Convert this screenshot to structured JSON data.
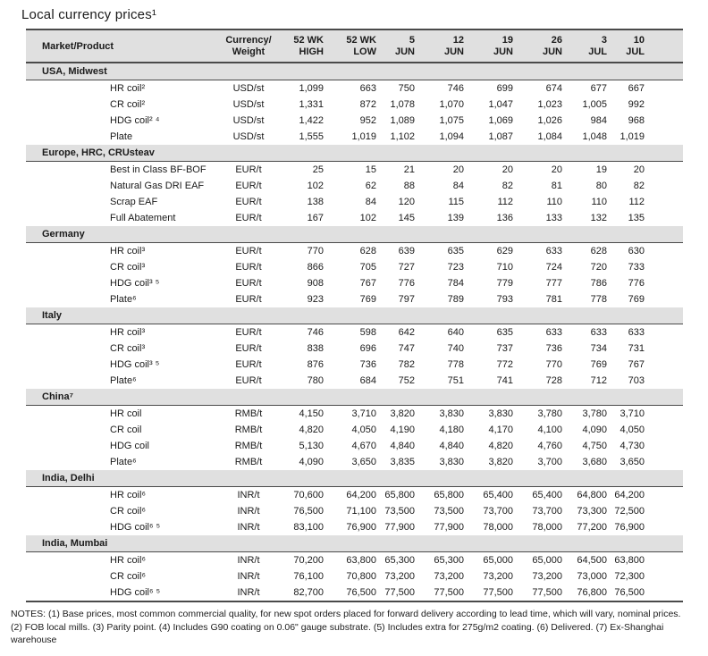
{
  "title": "Local currency prices¹",
  "colors": {
    "band": "#e0e0e0",
    "rule": "#4a4a4a",
    "text": "#1a1a1a"
  },
  "table": {
    "product_header": "Market/Product",
    "columns": [
      {
        "l1": "Currency/",
        "l2": "Weight"
      },
      {
        "l1": "52 WK",
        "l2": "HIGH"
      },
      {
        "l1": "52 WK",
        "l2": "LOW"
      },
      {
        "l1": "5",
        "l2": "JUN"
      },
      {
        "l1": "12",
        "l2": "JUN"
      },
      {
        "l1": "19",
        "l2": "JUN"
      },
      {
        "l1": "26",
        "l2": "JUN"
      },
      {
        "l1": "3",
        "l2": "JUL"
      },
      {
        "l1": "10",
        "l2": "JUL"
      }
    ],
    "sections": [
      {
        "name": "USA, Midwest",
        "rows": [
          {
            "product": "HR coil²",
            "currency": "USD/st",
            "values": [
              "1,099",
              "663",
              "750",
              "746",
              "699",
              "674",
              "677",
              "667"
            ]
          },
          {
            "product": "CR coil²",
            "currency": "USD/st",
            "values": [
              "1,331",
              "872",
              "1,078",
              "1,070",
              "1,047",
              "1,023",
              "1,005",
              "992"
            ]
          },
          {
            "product": "HDG coil² ⁴",
            "currency": "USD/st",
            "values": [
              "1,422",
              "952",
              "1,089",
              "1,075",
              "1,069",
              "1,026",
              "984",
              "968"
            ]
          },
          {
            "product": "Plate",
            "currency": "USD/st",
            "values": [
              "1,555",
              "1,019",
              "1,102",
              "1,094",
              "1,087",
              "1,084",
              "1,048",
              "1,019"
            ]
          }
        ]
      },
      {
        "name": "Europe, HRC, CRUsteav",
        "rows": [
          {
            "product": "Best in Class BF-BOF",
            "currency": "EUR/t",
            "values": [
              "25",
              "15",
              "21",
              "20",
              "20",
              "20",
              "19",
              "20"
            ]
          },
          {
            "product": "Natural Gas DRI EAF",
            "currency": "EUR/t",
            "values": [
              "102",
              "62",
              "88",
              "84",
              "82",
              "81",
              "80",
              "82"
            ]
          },
          {
            "product": "Scrap EAF",
            "currency": "EUR/t",
            "values": [
              "138",
              "84",
              "120",
              "115",
              "112",
              "110",
              "110",
              "112"
            ]
          },
          {
            "product": "Full Abatement",
            "currency": "EUR/t",
            "values": [
              "167",
              "102",
              "145",
              "139",
              "136",
              "133",
              "132",
              "135"
            ]
          }
        ]
      },
      {
        "name": "Germany",
        "rows": [
          {
            "product": "HR coil³",
            "currency": "EUR/t",
            "values": [
              "770",
              "628",
              "639",
              "635",
              "629",
              "633",
              "628",
              "630"
            ]
          },
          {
            "product": "CR coil³",
            "currency": "EUR/t",
            "values": [
              "866",
              "705",
              "727",
              "723",
              "710",
              "724",
              "720",
              "733"
            ]
          },
          {
            "product": "HDG coil³ ⁵",
            "currency": "EUR/t",
            "values": [
              "908",
              "767",
              "776",
              "784",
              "779",
              "777",
              "786",
              "776"
            ]
          },
          {
            "product": "Plate⁶",
            "currency": "EUR/t",
            "values": [
              "923",
              "769",
              "797",
              "789",
              "793",
              "781",
              "778",
              "769"
            ]
          }
        ]
      },
      {
        "name": "Italy",
        "rows": [
          {
            "product": "HR coil³",
            "currency": "EUR/t",
            "values": [
              "746",
              "598",
              "642",
              "640",
              "635",
              "633",
              "633",
              "633"
            ]
          },
          {
            "product": "CR coil³",
            "currency": "EUR/t",
            "values": [
              "838",
              "696",
              "747",
              "740",
              "737",
              "736",
              "734",
              "731"
            ]
          },
          {
            "product": "HDG coil³ ⁵",
            "currency": "EUR/t",
            "values": [
              "876",
              "736",
              "782",
              "778",
              "772",
              "770",
              "769",
              "767"
            ]
          },
          {
            "product": "Plate⁶",
            "currency": "EUR/t",
            "values": [
              "780",
              "684",
              "752",
              "751",
              "741",
              "728",
              "712",
              "703"
            ]
          }
        ]
      },
      {
        "name": "China⁷",
        "rows": [
          {
            "product": "HR coil",
            "currency": "RMB/t",
            "values": [
              "4,150",
              "3,710",
              "3,820",
              "3,830",
              "3,830",
              "3,780",
              "3,780",
              "3,710"
            ]
          },
          {
            "product": "CR coil",
            "currency": "RMB/t",
            "values": [
              "4,820",
              "4,050",
              "4,190",
              "4,180",
              "4,170",
              "4,100",
              "4,090",
              "4,050"
            ]
          },
          {
            "product": "HDG coil",
            "currency": "RMB/t",
            "values": [
              "5,130",
              "4,670",
              "4,840",
              "4,840",
              "4,820",
              "4,760",
              "4,750",
              "4,730"
            ]
          },
          {
            "product": "Plate⁶",
            "currency": "RMB/t",
            "values": [
              "4,090",
              "3,650",
              "3,835",
              "3,830",
              "3,820",
              "3,700",
              "3,680",
              "3,650"
            ]
          }
        ]
      },
      {
        "name": "India, Delhi",
        "rows": [
          {
            "product": "HR coil⁶",
            "currency": "INR/t",
            "values": [
              "70,600",
              "64,200",
              "65,800",
              "65,800",
              "65,400",
              "65,400",
              "64,800",
              "64,200"
            ]
          },
          {
            "product": "CR coil⁶",
            "currency": "INR/t",
            "values": [
              "76,500",
              "71,100",
              "73,500",
              "73,500",
              "73,700",
              "73,700",
              "73,300",
              "72,500"
            ]
          },
          {
            "product": "HDG coil⁶ ⁵",
            "currency": "INR/t",
            "values": [
              "83,100",
              "76,900",
              "77,900",
              "77,900",
              "78,000",
              "78,000",
              "77,200",
              "76,900"
            ]
          }
        ]
      },
      {
        "name": "India, Mumbai",
        "rows": [
          {
            "product": "HR coil⁶",
            "currency": "INR/t",
            "values": [
              "70,200",
              "63,800",
              "65,300",
              "65,300",
              "65,000",
              "65,000",
              "64,500",
              "63,800"
            ]
          },
          {
            "product": "CR coil⁶",
            "currency": "INR/t",
            "values": [
              "76,100",
              "70,800",
              "73,200",
              "73,200",
              "73,200",
              "73,200",
              "73,000",
              "72,300"
            ]
          },
          {
            "product": "HDG coil⁶ ⁵",
            "currency": "INR/t",
            "values": [
              "82,700",
              "76,500",
              "77,500",
              "77,500",
              "77,500",
              "77,500",
              "76,800",
              "76,500"
            ]
          }
        ]
      }
    ]
  },
  "notes": "NOTES: (1) Base prices, most common commercial quality, for new spot orders placed for forward delivery according to lead time, which will vary, nominal prices. (2) FOB local mills. (3) Parity point. (4) Includes G90 coating on 0.06\" gauge substrate. (5) Includes extra for 275g/m2 coating. (6) Delivered.  (7) Ex-Shanghai warehouse"
}
